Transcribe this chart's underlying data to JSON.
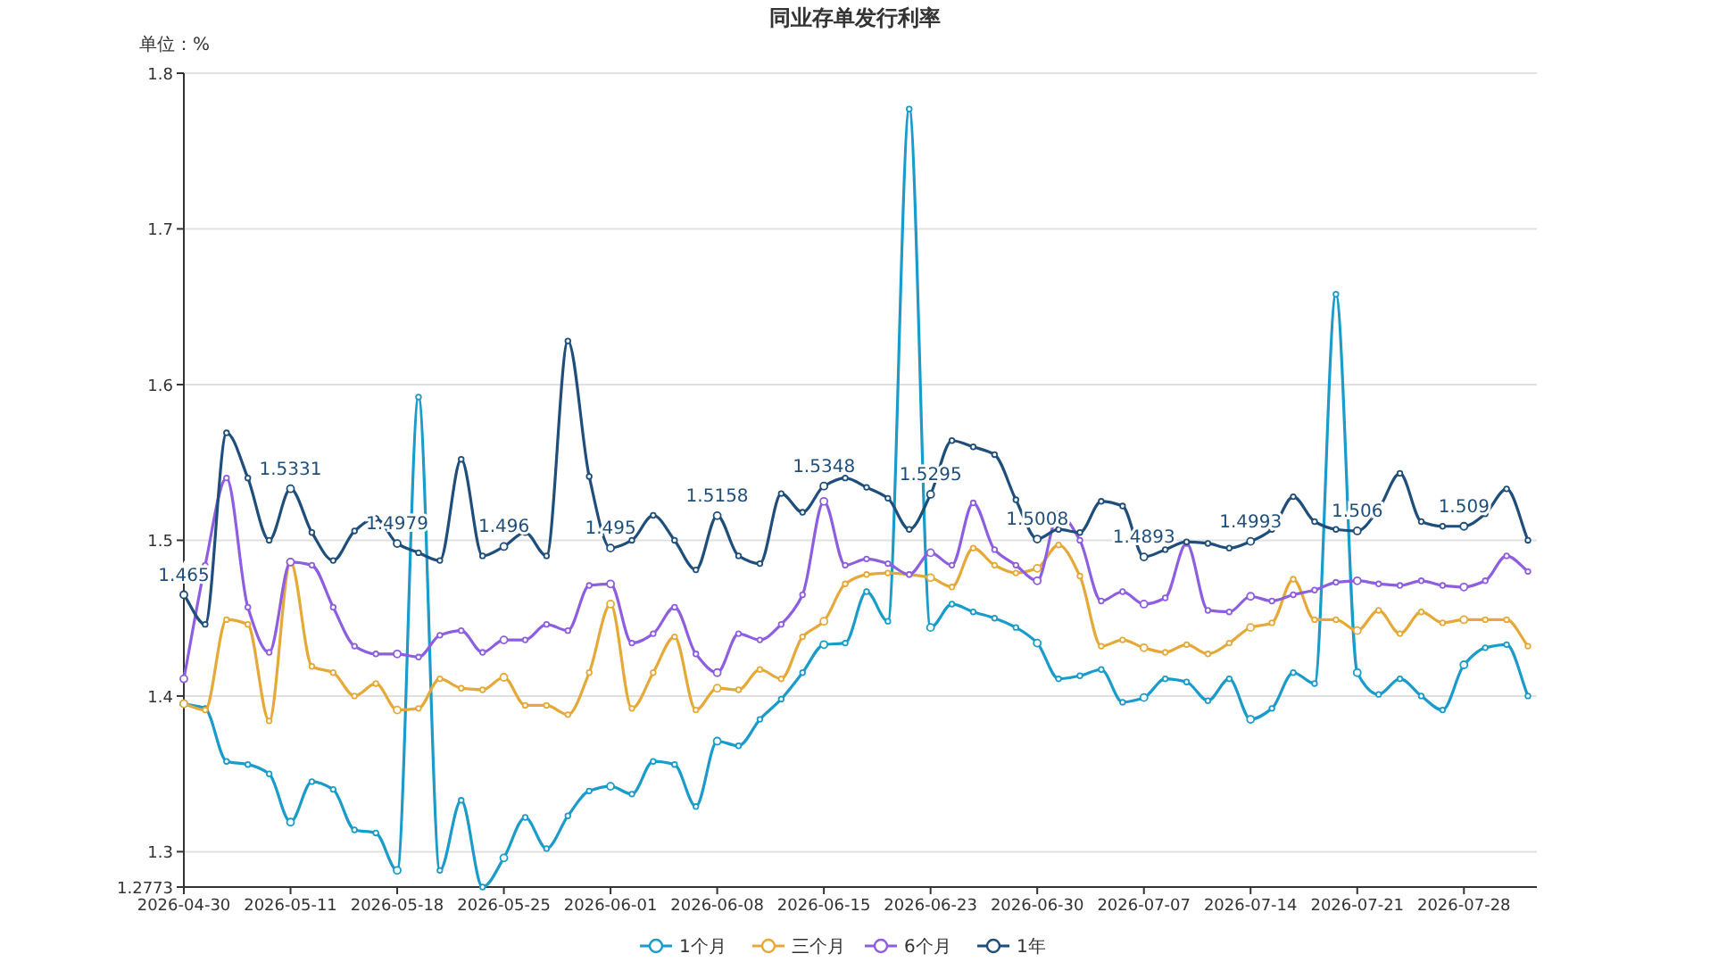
{
  "chart_data": {
    "type": "line",
    "title": "同业存单发行利率",
    "ylabel": "单位：%",
    "categories": [
      "2026-04-30",
      null,
      null,
      null,
      null,
      "2026-05-11",
      null,
      null,
      null,
      null,
      "2026-05-18",
      null,
      null,
      null,
      null,
      "2026-05-25",
      null,
      null,
      null,
      null,
      "2026-06-01",
      null,
      null,
      null,
      null,
      "2026-06-08",
      null,
      null,
      null,
      null,
      "2026-06-15",
      null,
      null,
      null,
      null,
      "2026-06-23",
      null,
      null,
      null,
      null,
      "2026-06-30",
      null,
      null,
      null,
      null,
      "2026-07-07",
      null,
      null,
      null,
      null,
      "2026-07-14",
      null,
      null,
      null,
      null,
      "2026-07-21",
      null,
      null,
      null,
      null,
      "2026-07-28",
      null,
      null,
      null
    ],
    "ylim": [
      1.2773,
      1.8
    ],
    "yticks": [
      1.2773,
      1.3,
      1.4,
      1.5,
      1.6,
      1.7,
      1.8
    ],
    "grid": "y",
    "legend": "bottom",
    "marker": "circle",
    "series": [
      {
        "name": "1个月",
        "color": "#1a9bc9",
        "values": [
          1.395,
          1.392,
          1.358,
          1.356,
          1.35,
          1.319,
          1.345,
          1.34,
          1.314,
          1.312,
          1.288,
          1.592,
          1.288,
          1.333,
          1.2773,
          1.296,
          1.322,
          1.302,
          1.323,
          1.339,
          1.342,
          1.337,
          1.358,
          1.356,
          1.329,
          1.371,
          1.368,
          1.385,
          1.398,
          1.415,
          1.433,
          1.434,
          1.467,
          1.448,
          1.777,
          1.444,
          1.459,
          1.454,
          1.45,
          1.444,
          1.434,
          1.411,
          1.413,
          1.417,
          1.396,
          1.399,
          1.411,
          1.409,
          1.397,
          1.411,
          1.385,
          1.392,
          1.415,
          1.408,
          1.658,
          1.415,
          1.401,
          1.411,
          1.4,
          1.391,
          1.42,
          1.431,
          1.433,
          1.4
        ]
      },
      {
        "name": "三个月",
        "color": "#e5a93a",
        "values": [
          1.395,
          1.391,
          1.449,
          1.446,
          1.384,
          1.486,
          1.419,
          1.415,
          1.4,
          1.408,
          1.391,
          1.392,
          1.411,
          1.405,
          1.404,
          1.412,
          1.394,
          1.394,
          1.388,
          1.415,
          1.459,
          1.392,
          1.415,
          1.438,
          1.391,
          1.405,
          1.404,
          1.417,
          1.411,
          1.438,
          1.448,
          1.472,
          1.478,
          1.479,
          1.478,
          1.476,
          1.47,
          1.495,
          1.484,
          1.479,
          1.482,
          1.497,
          1.477,
          1.432,
          1.436,
          1.431,
          1.428,
          1.433,
          1.427,
          1.434,
          1.444,
          1.447,
          1.475,
          1.449,
          1.449,
          1.442,
          1.455,
          1.44,
          1.454,
          1.447,
          1.449,
          1.449,
          1.449,
          1.432
        ]
      },
      {
        "name": "6个月",
        "color": "#8e5ee0",
        "values": [
          1.411,
          1.484,
          1.54,
          1.457,
          1.428,
          1.486,
          1.484,
          1.457,
          1.432,
          1.427,
          1.427,
          1.425,
          1.439,
          1.442,
          1.428,
          1.436,
          1.436,
          1.446,
          1.442,
          1.471,
          1.472,
          1.434,
          1.44,
          1.457,
          1.427,
          1.415,
          1.44,
          1.436,
          1.446,
          1.465,
          1.525,
          1.484,
          1.488,
          1.485,
          1.478,
          1.492,
          1.484,
          1.524,
          1.494,
          1.484,
          1.474,
          1.517,
          1.5,
          1.461,
          1.467,
          1.459,
          1.463,
          1.498,
          1.455,
          1.454,
          1.464,
          1.461,
          1.465,
          1.468,
          1.473,
          1.474,
          1.472,
          1.471,
          1.474,
          1.471,
          1.47,
          1.474,
          1.49,
          1.48
        ]
      },
      {
        "name": "1年",
        "color": "#1f4e7a",
        "values": [
          1.465,
          1.446,
          1.569,
          1.54,
          1.5,
          1.5331,
          1.505,
          1.487,
          1.506,
          1.514,
          1.4979,
          1.492,
          1.487,
          1.552,
          1.49,
          1.496,
          1.505,
          1.49,
          1.628,
          1.541,
          1.495,
          1.5,
          1.516,
          1.5,
          1.481,
          1.5158,
          1.49,
          1.485,
          1.53,
          1.518,
          1.5348,
          1.54,
          1.534,
          1.527,
          1.507,
          1.5295,
          1.564,
          1.56,
          1.555,
          1.526,
          1.5008,
          1.507,
          1.505,
          1.525,
          1.522,
          1.4893,
          1.494,
          1.499,
          1.498,
          1.495,
          1.4993,
          1.507,
          1.528,
          1.512,
          1.507,
          1.506,
          1.52,
          1.543,
          1.512,
          1.509,
          1.509,
          1.517,
          1.533,
          1.5
        ],
        "value_labels": [
          "1.465",
          null,
          null,
          null,
          null,
          "1.5331",
          null,
          null,
          null,
          null,
          "1.4979",
          null,
          null,
          null,
          null,
          "1.496",
          null,
          null,
          null,
          null,
          "1.495",
          null,
          null,
          null,
          null,
          "1.5158",
          null,
          null,
          null,
          null,
          "1.5348",
          null,
          null,
          null,
          null,
          "1.5295",
          null,
          null,
          null,
          null,
          "1.5008",
          null,
          null,
          null,
          null,
          "1.4893",
          null,
          null,
          null,
          null,
          "1.4993",
          null,
          null,
          null,
          null,
          "1.506",
          null,
          null,
          null,
          null,
          "1.509",
          null,
          null,
          null
        ]
      }
    ]
  }
}
